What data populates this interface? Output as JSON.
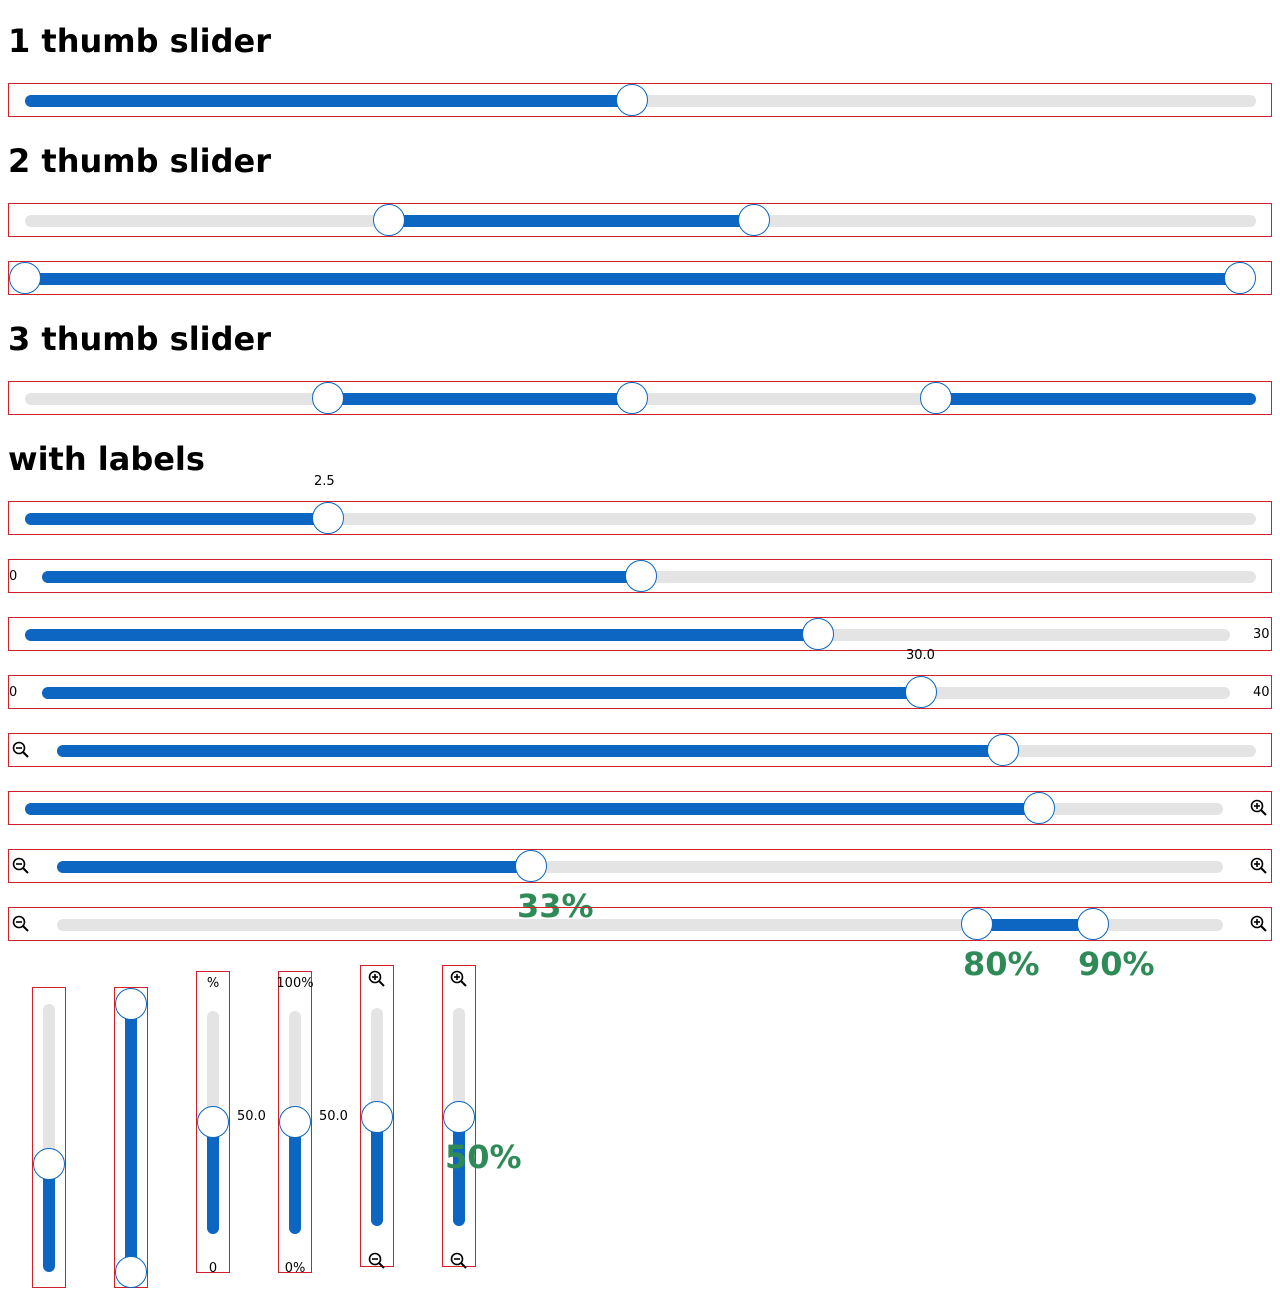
{
  "colors": {
    "fill": "#0c66c2",
    "track": "#e4e4e4",
    "border": "#d0202a",
    "percent_label": "#2e8b57"
  },
  "headings": {
    "one_thumb": "1 thumb slider",
    "two_thumb": "2 thumb slider",
    "three_thumb": "3 thumb slider",
    "with_labels": "with labels"
  },
  "sliders": {
    "s1": {
      "value_fraction": 0.5
    },
    "s2a": {
      "values_fraction": [
        0.3,
        0.6
      ]
    },
    "s2b": {
      "values_fraction": [
        0.0,
        1.0
      ]
    },
    "s3": {
      "values_fraction": [
        0.25,
        0.5,
        0.75
      ]
    },
    "l1": {
      "value_label": "2.5"
    },
    "l2": {
      "min_label": "0"
    },
    "l3": {
      "max_label": "30"
    },
    "l4": {
      "min_label": "0",
      "max_label": "40",
      "value_label": "30.0"
    },
    "l5": {
      "zoom_out_icon": "zoom-out-icon"
    },
    "l6": {
      "zoom_in_icon": "zoom-in-icon"
    },
    "l7": {
      "value_label": "33%"
    },
    "l8": {
      "value_labels": [
        "80%",
        "90%"
      ]
    },
    "v3": {
      "top_label": "%",
      "bottom_label": "0",
      "value_label": "50.0"
    },
    "v4": {
      "top_label": "100%",
      "bottom_label": "0%",
      "value_label": "50.0"
    },
    "v6": {
      "value_label": "50%"
    }
  }
}
